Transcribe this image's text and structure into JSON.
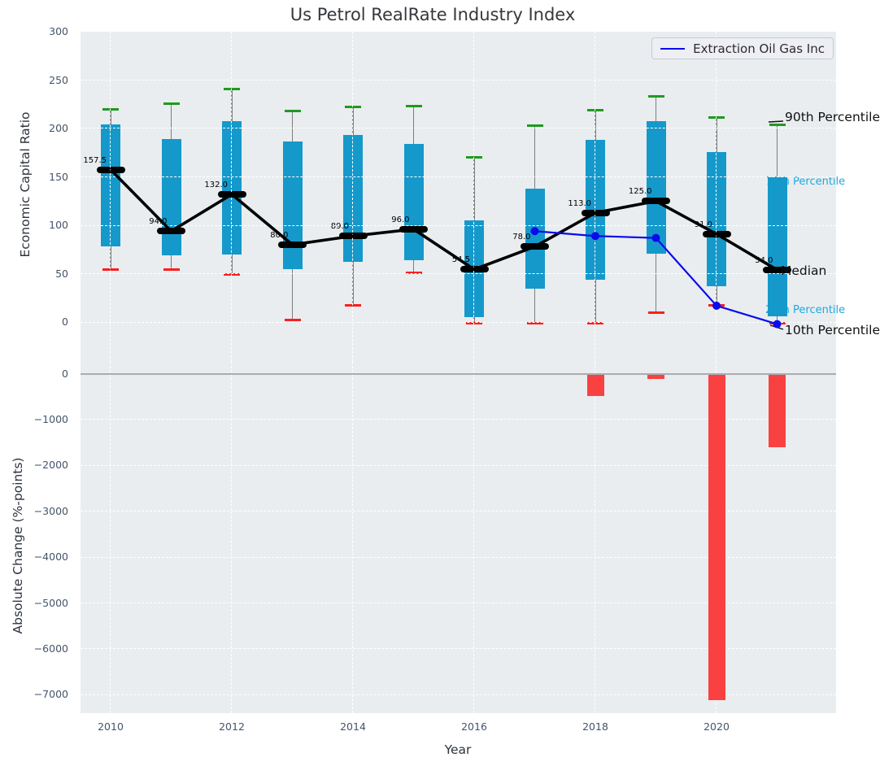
{
  "title": "Us Petrol RealRate Industry Index",
  "legend": {
    "label": "Extraction Oil Gas Inc",
    "line_color": "#0a0aee"
  },
  "annotations": {
    "p90": "90th Percentile",
    "p75": "75th Percentile",
    "median": "Median",
    "p25": "25th Percentile",
    "p10": "10th Percentile"
  },
  "colors": {
    "axes_background": "#e9edef",
    "box_fill": "#1599cb",
    "whisker": "#7d7d7d",
    "cap_90th": "#1f9a1f",
    "cap_10th": "#fb1e1e",
    "median_marker": "#000000",
    "median_line": "#000000",
    "company_line": "#0a0aee",
    "bar_fill": "#f94141",
    "zero_line": "#aaacb0",
    "tick_label": "#44546a",
    "percentile_label_cyan": "#1ca9e0",
    "grid": "#ffffff"
  },
  "chart_data": [
    {
      "type": "box",
      "title": "Us Petrol RealRate Industry Index",
      "ylabel": "Economic Capital Ratio",
      "ylim": [
        -41,
        300
      ],
      "yticks": [
        300,
        250,
        200,
        150,
        100,
        50,
        0
      ],
      "categories": [
        2010,
        2011,
        2012,
        2013,
        2014,
        2015,
        2016,
        2017,
        2018,
        2019,
        2020,
        2021
      ],
      "xticks": [
        2010,
        2012,
        2014,
        2016,
        2018,
        2020
      ],
      "grid": true,
      "legend_position": "upper right",
      "series": {
        "p10": [
          54,
          54,
          49,
          2,
          17,
          51,
          -1,
          -1,
          -1,
          10,
          17,
          -1
        ],
        "p25": [
          78,
          69,
          70,
          55,
          62,
          64,
          5,
          35,
          44,
          71,
          37,
          6
        ],
        "median": [
          157.5,
          94.0,
          132.0,
          80.0,
          89.0,
          96.0,
          54.5,
          78.0,
          113.0,
          125.0,
          91.0,
          54.0
        ],
        "p75": [
          204,
          189,
          208,
          187,
          193,
          184,
          105,
          138,
          188,
          208,
          176,
          150
        ],
        "p90": [
          220,
          226,
          241,
          218,
          222,
          223,
          170,
          203,
          219,
          233,
          211,
          204
        ]
      },
      "median_labels": [
        "157.5",
        "94.0",
        "132.0",
        "80.0",
        "89.0",
        "96.0",
        "54.5",
        "78.0",
        "113.0",
        "125.0",
        "91.0",
        "54.0"
      ],
      "company_line": {
        "name": "Extraction Oil Gas Inc",
        "x": [
          2017,
          2018,
          2019,
          2020,
          2021
        ],
        "y": [
          94,
          89,
          87,
          17,
          -2
        ]
      }
    },
    {
      "type": "bar",
      "xlabel": "Year",
      "ylabel": "Absolute Change (%-points)",
      "ylim": [
        260,
        -7400
      ],
      "yticks": [
        0,
        -1000,
        -2000,
        -3000,
        -4000,
        -5000,
        -6000,
        -7000
      ],
      "x": [
        2018,
        2019,
        2020,
        2021
      ],
      "values": [
        -480,
        -110,
        -7120,
        -1610
      ],
      "grid": true
    }
  ]
}
